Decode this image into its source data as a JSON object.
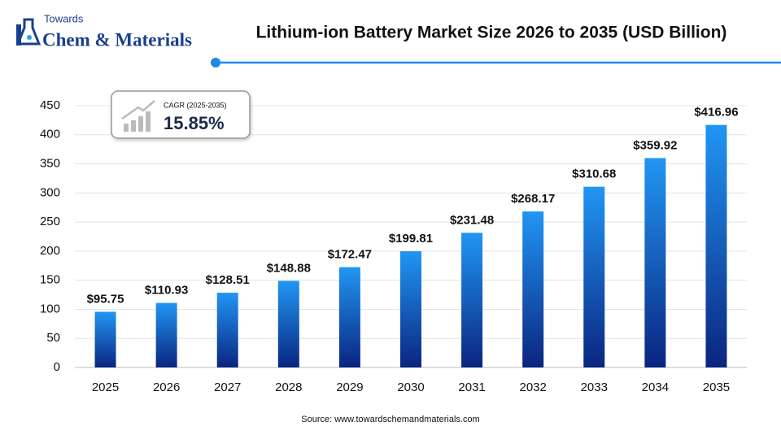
{
  "logo": {
    "line1": "Towards",
    "line2": "Chem & Materials"
  },
  "chart_data": {
    "type": "bar",
    "title": "Lithium-ion Battery Market Size 2026 to 2035 (USD Billion)",
    "categories": [
      "2025",
      "2026",
      "2027",
      "2028",
      "2029",
      "2030",
      "2031",
      "2032",
      "2033",
      "2034",
      "2035"
    ],
    "values": [
      95.75,
      110.93,
      128.51,
      148.88,
      172.47,
      199.81,
      231.48,
      268.17,
      310.68,
      359.92,
      416.96
    ],
    "value_labels": [
      "$95.75",
      "$110.93",
      "$128.51",
      "$148.88",
      "$172.47",
      "$199.81",
      "$231.48",
      "$268.17",
      "$310.68",
      "$359.92",
      "$416.96"
    ],
    "colors": [
      "#2196f3",
      "#0a2580"
    ],
    "ylim": [
      0,
      450
    ],
    "yticks": [
      0,
      50,
      100,
      150,
      200,
      250,
      300,
      350,
      400,
      450
    ],
    "grid": true,
    "cagr_label": "CAGR (2025-2035)",
    "cagr_value": "15.85%",
    "source": "Source: www.towardschemandmaterials.com"
  }
}
